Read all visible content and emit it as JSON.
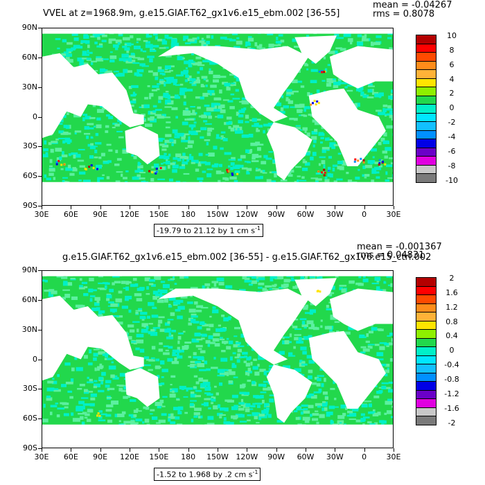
{
  "panels": [
    {
      "title": "VVEL at z=1968.9m, g.e15.GIAF.T62_gx1v6.e15_ebm.002 [36-55]",
      "mean_text": "mean = -0.04267",
      "rms_text": "rms = 0.8078",
      "range_text": "-19.79 to 21.12 by 1 cm s",
      "range_units_sup": "-1",
      "colorbar": {
        "labels": [
          "10",
          "8",
          "6",
          "4",
          "2",
          "0",
          "-2",
          "-4",
          "-6",
          "-8",
          "-10"
        ],
        "colors": [
          "#b40000",
          "#ff0000",
          "#ff4a00",
          "#ff8c1a",
          "#ffb238",
          "#ffe400",
          "#8ef000",
          "#22d84c",
          "#00f0c8",
          "#00e6ff",
          "#12c0ff",
          "#0090ff",
          "#0000e6",
          "#6a00c8",
          "#e000e0",
          "#c8c8c8",
          "#7a7a7a"
        ]
      }
    },
    {
      "title": "g.e15.GIAF.T62_gx1v6.e15_ebm.002 [36-55] - g.e15.GIAF.T62_gx1v6.e15_ctrl.002",
      "mean_text": "mean = -0.001367",
      "rms_text": "rms = 0.04831",
      "range_text": "-1.52 to 1.968 by .2 cm s",
      "range_units_sup": "-1",
      "colorbar": {
        "labels": [
          "2",
          "1.6",
          "1.2",
          "0.8",
          "0.4",
          "0",
          "-0.4",
          "-0.8",
          "-1.2",
          "-1.6",
          "-2"
        ],
        "colors": [
          "#b40000",
          "#ff0000",
          "#ff4a00",
          "#ff8c1a",
          "#ffb238",
          "#ffe400",
          "#8ef000",
          "#22d84c",
          "#00f0c8",
          "#00e6ff",
          "#12c0ff",
          "#0090ff",
          "#0000e6",
          "#6a00c8",
          "#e000e0",
          "#c8c8c8",
          "#7a7a7a"
        ]
      }
    }
  ],
  "lat_labels": [
    "90N",
    "60N",
    "30N",
    "0",
    "30S",
    "60S",
    "90S"
  ],
  "lon_labels": [
    "30E",
    "60E",
    "90E",
    "120E",
    "150E",
    "180",
    "150W",
    "120W",
    "90W",
    "60W",
    "30W",
    "0",
    "30E"
  ],
  "colors": {
    "ocean_base": "#22d84c",
    "ocean_alt": "#00f0c8",
    "land": "#ffffff"
  }
}
